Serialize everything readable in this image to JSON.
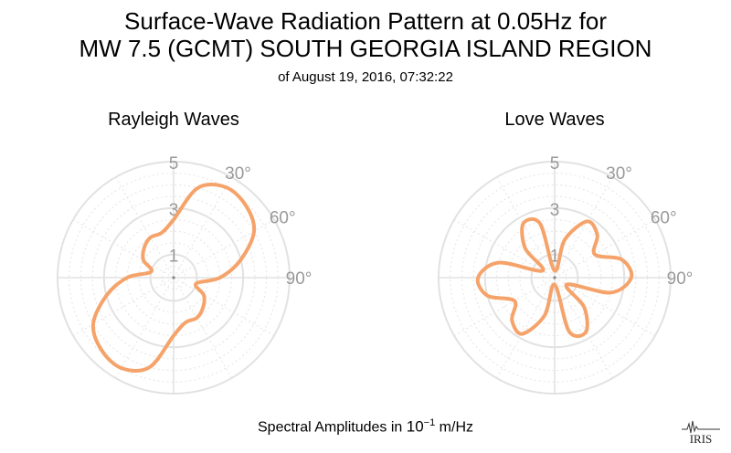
{
  "title": {
    "line1": "Surface-Wave Radiation Pattern at 0.05Hz for",
    "line2": "MW 7.5 (GCMT) SOUTH GEORGIA ISLAND REGION",
    "line3": "of August 19, 2016, 07:32:22"
  },
  "footer": {
    "prefix": "Spectral Amplitudes in ",
    "base": "10",
    "exponent": "−1",
    "unit": " m/Hz"
  },
  "logo": {
    "text": "IRIS"
  },
  "colors": {
    "curve": "#f5a36a",
    "grid_major": "#e2e2e2",
    "grid_minor": "#e6e6e6",
    "label": "#999999"
  },
  "chart_data": [
    {
      "type": "polar",
      "title": "Rayleigh Waves",
      "rmax": 5,
      "radial_ticks": [
        "1",
        "3",
        "5"
      ],
      "angle_labels": [
        "30°",
        "60°",
        "90°"
      ],
      "angle_ticks_deg": [
        30,
        60,
        90
      ],
      "series": [
        {
          "azimuth_deg": [
            0,
            15,
            30,
            45,
            60,
            75,
            90,
            105,
            120,
            135,
            150,
            165,
            180,
            195,
            210,
            225,
            240,
            255,
            270,
            285,
            300,
            315,
            330,
            345
          ],
          "amplitude": [
            2.5,
            4.0,
            4.5,
            4.4,
            4.0,
            3.0,
            2.0,
            1.0,
            1.5,
            1.8,
            2.0,
            2.0,
            2.5,
            4.0,
            4.5,
            4.4,
            4.0,
            3.0,
            2.0,
            1.0,
            1.5,
            1.8,
            2.0,
            2.0
          ]
        }
      ]
    },
    {
      "type": "polar",
      "title": "Love Waves",
      "rmax": 5,
      "radial_ticks": [
        "1",
        "3",
        "5"
      ],
      "angle_labels": [
        "30°",
        "60°",
        "90°"
      ],
      "angle_ticks_deg": [
        30,
        60,
        90
      ],
      "series": [
        {
          "azimuth_deg": [
            0,
            15,
            30,
            45,
            60,
            75,
            90,
            105,
            120,
            135,
            150,
            165,
            180,
            195,
            210,
            225,
            240,
            255,
            270,
            285,
            300,
            315,
            330,
            345
          ],
          "amplitude": [
            0.3,
            1.7,
            2.8,
            2.6,
            2.0,
            3.0,
            3.3,
            2.5,
            0.6,
            1.8,
            2.7,
            2.4,
            0.3,
            1.7,
            2.8,
            2.6,
            2.0,
            3.0,
            3.3,
            2.5,
            0.6,
            1.8,
            2.7,
            2.4
          ]
        }
      ]
    }
  ]
}
